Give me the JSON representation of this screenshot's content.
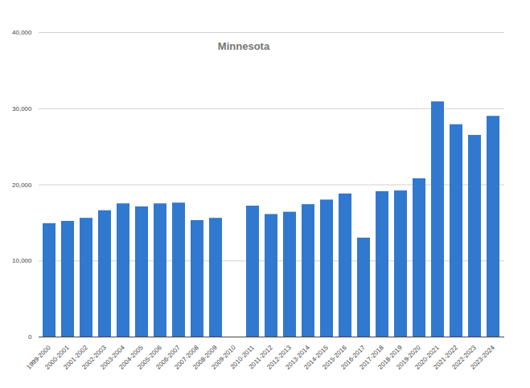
{
  "chart_data": {
    "type": "bar",
    "title": "Minnesota",
    "categories": [
      "1999-2000",
      "2000-2001",
      "2001-2002",
      "2002-2003",
      "2003-2004",
      "2004-2005",
      "2005-2006",
      "2006-2007",
      "2007-2008",
      "2008-2009",
      "2009-2010",
      "2010-2011",
      "2011-2012",
      "2012-2013",
      "2013-2014",
      "2014-2015",
      "2015-2016",
      "2016-2017",
      "2017-2018",
      "2018-2019",
      "2019-2020",
      "2020-2021",
      "2021-2022",
      "2022-2023",
      "2023-2024"
    ],
    "values": [
      14900,
      15200,
      15600,
      16600,
      17500,
      17100,
      17500,
      17600,
      15300,
      15600,
      null,
      17200,
      16100,
      16400,
      17400,
      18000,
      18800,
      13000,
      19100,
      19200,
      20800,
      30900,
      27900,
      26500,
      29000
    ],
    "color": "#3178cf",
    "ylim": [
      0,
      40000
    ],
    "yticks": [
      0,
      10000,
      20000,
      30000,
      40000
    ],
    "grid": true
  }
}
